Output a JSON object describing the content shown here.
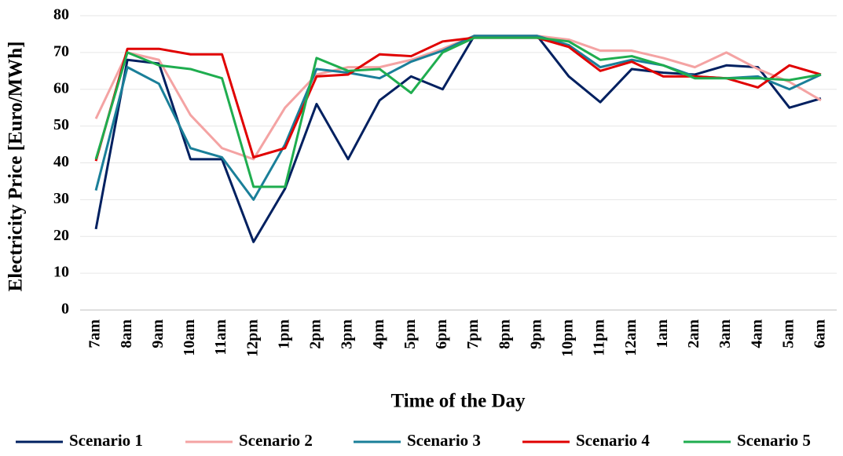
{
  "chart_data": {
    "type": "line",
    "x_label": "Time of the Day",
    "y_label": "Electricity Price [Euro/MWh]",
    "categories": [
      "7am",
      "8am",
      "9am",
      "10am",
      "11am",
      "12pm",
      "1pm",
      "2pm",
      "3pm",
      "4pm",
      "5pm",
      "6pm",
      "7pm",
      "8pm",
      "9pm",
      "10pm",
      "11pm",
      "12am",
      "1am",
      "2am",
      "3am",
      "4am",
      "5am",
      "6am"
    ],
    "ylim": [
      0,
      80
    ],
    "yticks": [
      0,
      10,
      20,
      30,
      40,
      50,
      60,
      70,
      80
    ],
    "grid": true,
    "legend": "bottom",
    "series": [
      {
        "name": "Scenario 1",
        "color": "#002060",
        "values": [
          22,
          68,
          67,
          41,
          41,
          18.5,
          33,
          56,
          41,
          57,
          63.5,
          60,
          74.5,
          74.5,
          74.5,
          63.5,
          56.5,
          65.5,
          64.5,
          64,
          66.5,
          66,
          55,
          57.5
        ]
      },
      {
        "name": "Scenario 2",
        "color": "#f4a3a3",
        "values": [
          52,
          70,
          68,
          53,
          44,
          41,
          55,
          64,
          66,
          66,
          68,
          71,
          74.5,
          74.5,
          74.5,
          73.5,
          70.5,
          70.5,
          68.5,
          66,
          70,
          65.5,
          62,
          57
        ]
      },
      {
        "name": "Scenario 3",
        "color": "#1a7f99",
        "values": [
          32.5,
          66,
          61.5,
          44,
          41.5,
          30,
          45,
          65.5,
          64.5,
          63,
          67.5,
          70.5,
          74.5,
          74.5,
          74.5,
          72,
          66,
          68,
          66.5,
          63.5,
          63,
          63.5,
          60,
          64
        ]
      },
      {
        "name": "Scenario 4",
        "color": "#e00000",
        "values": [
          40.5,
          71,
          71,
          69.5,
          69.5,
          41.5,
          44,
          63.5,
          64,
          69.5,
          69,
          73,
          74,
          74,
          74,
          71.5,
          65,
          67.5,
          63.5,
          63.5,
          63,
          60.5,
          66.5,
          64
        ]
      },
      {
        "name": "Scenario 5",
        "color": "#1fad4f",
        "values": [
          41,
          70,
          66.5,
          65.5,
          63,
          33.5,
          33.5,
          68.5,
          65,
          65.5,
          59,
          70,
          74,
          74,
          74,
          73,
          68,
          69,
          66.5,
          63,
          63,
          63,
          62.5,
          64
        ]
      }
    ]
  }
}
